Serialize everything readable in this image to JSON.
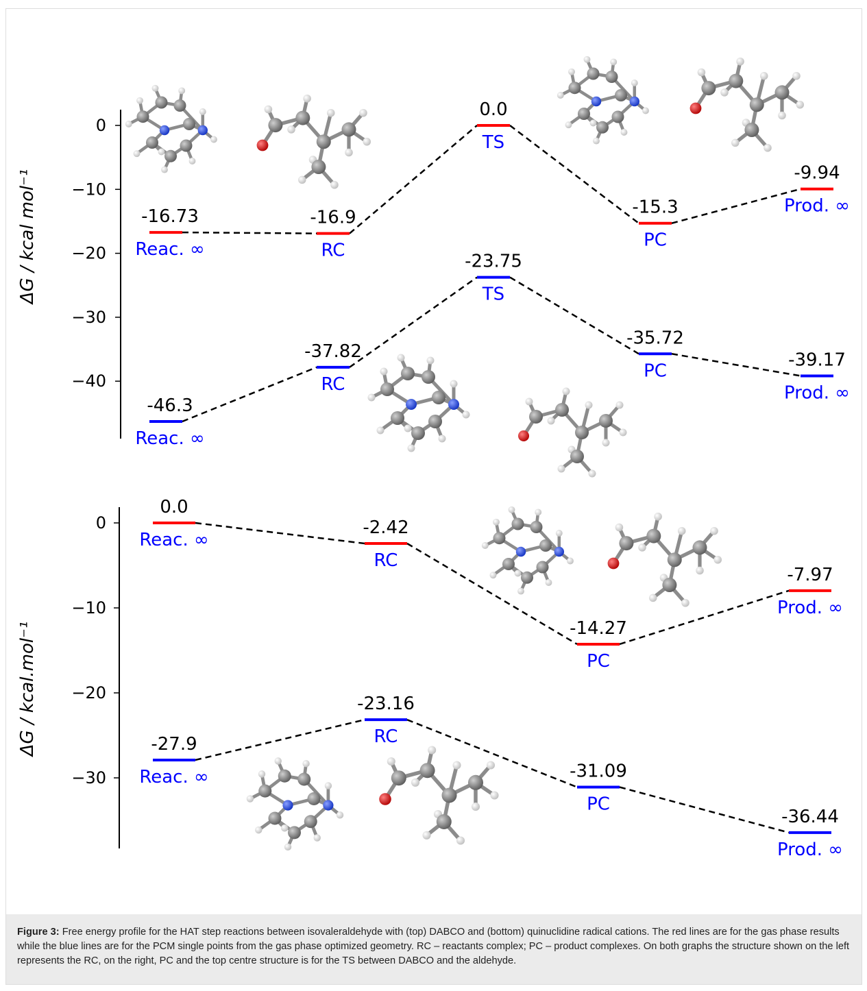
{
  "chart_data": [
    {
      "type": "line",
      "ylabel": "ΔG / kcal mol⁻¹",
      "yticks": [
        0,
        -10,
        -20,
        -30,
        -40
      ],
      "ylim": [
        -49,
        2.5
      ],
      "positions": [
        0,
        1,
        2,
        3,
        4
      ],
      "series": [
        {
          "color": "#ff0000",
          "values": [
            -16.73,
            -16.9,
            0.0,
            -15.3,
            -9.94
          ],
          "value_labels": [
            "-16.73",
            "-16.9",
            "0.0",
            "-15.3",
            "-9.94"
          ],
          "state_labels": [
            "Reac. ∞",
            "RC",
            "TS",
            "PC",
            "Prod. ∞"
          ]
        },
        {
          "color": "#0000ff",
          "values": [
            -46.3,
            -37.82,
            -23.75,
            -35.72,
            -39.17
          ],
          "value_labels": [
            "-46.3",
            "-37.82",
            "-23.75",
            "-35.72",
            "-39.17"
          ],
          "state_labels": [
            "Reac. ∞",
            "RC",
            "TS",
            "PC",
            "Prod. ∞"
          ]
        }
      ]
    },
    {
      "type": "line",
      "ylabel": "ΔG / kcal.mol⁻¹",
      "yticks": [
        0,
        -10,
        -20,
        -30
      ],
      "ylim": [
        -38,
        2
      ],
      "positions": [
        0,
        1,
        2,
        3
      ],
      "series": [
        {
          "color": "#ff0000",
          "values": [
            0.0,
            -2.42,
            -14.27,
            -7.97
          ],
          "value_labels": [
            "0.0",
            "-2.42",
            "-14.27",
            "-7.97"
          ],
          "state_labels": [
            "Reac. ∞",
            "RC",
            "PC",
            "Prod. ∞"
          ]
        },
        {
          "color": "#0000ff",
          "values": [
            -27.9,
            -23.16,
            -31.09,
            -36.44
          ],
          "value_labels": [
            "-27.9",
            "-23.16",
            "-31.09",
            "-36.44"
          ],
          "state_labels": [
            "Reac. ∞",
            "RC",
            "PC",
            "Prod. ∞"
          ]
        }
      ]
    }
  ],
  "caption": {
    "label": "Figure 3:",
    "text": "Free energy profile for the HAT step reactions between isovaleraldehyde with (top) DABCO and (bottom) quinuclidine radical cations. The red lines are for the gas phase results while the blue lines are for the PCM single points from the gas phase optimized geometry. RC – reactants complex; PC – product complexes. On both graphs the structure shown on the left represents the RC, on the right, PC and the top centre structure is for the TS between DABCO and the aldehyde."
  },
  "colors": {
    "gas_phase": "#ff0000",
    "pcm": "#0000ff",
    "caption_bg": "#ebebeb",
    "carbon": "#808080",
    "nitrogen": "#3050f8",
    "oxygen": "#e00000",
    "hydrogen": "#e8e8e8"
  },
  "molecules": [
    "dabco-rc-structure",
    "isovaleraldehyde-rc-structure",
    "dabco-pc-structure",
    "isovaleraldehyde-pc-structure",
    "dabco-ts-structure",
    "isovaleraldehyde-ts-structure",
    "quinuclidine-pc-structure",
    "isovaleraldehyde-q-pc-structure",
    "quinuclidine-rc-structure",
    "isovaleraldehyde-q-rc-structure"
  ]
}
